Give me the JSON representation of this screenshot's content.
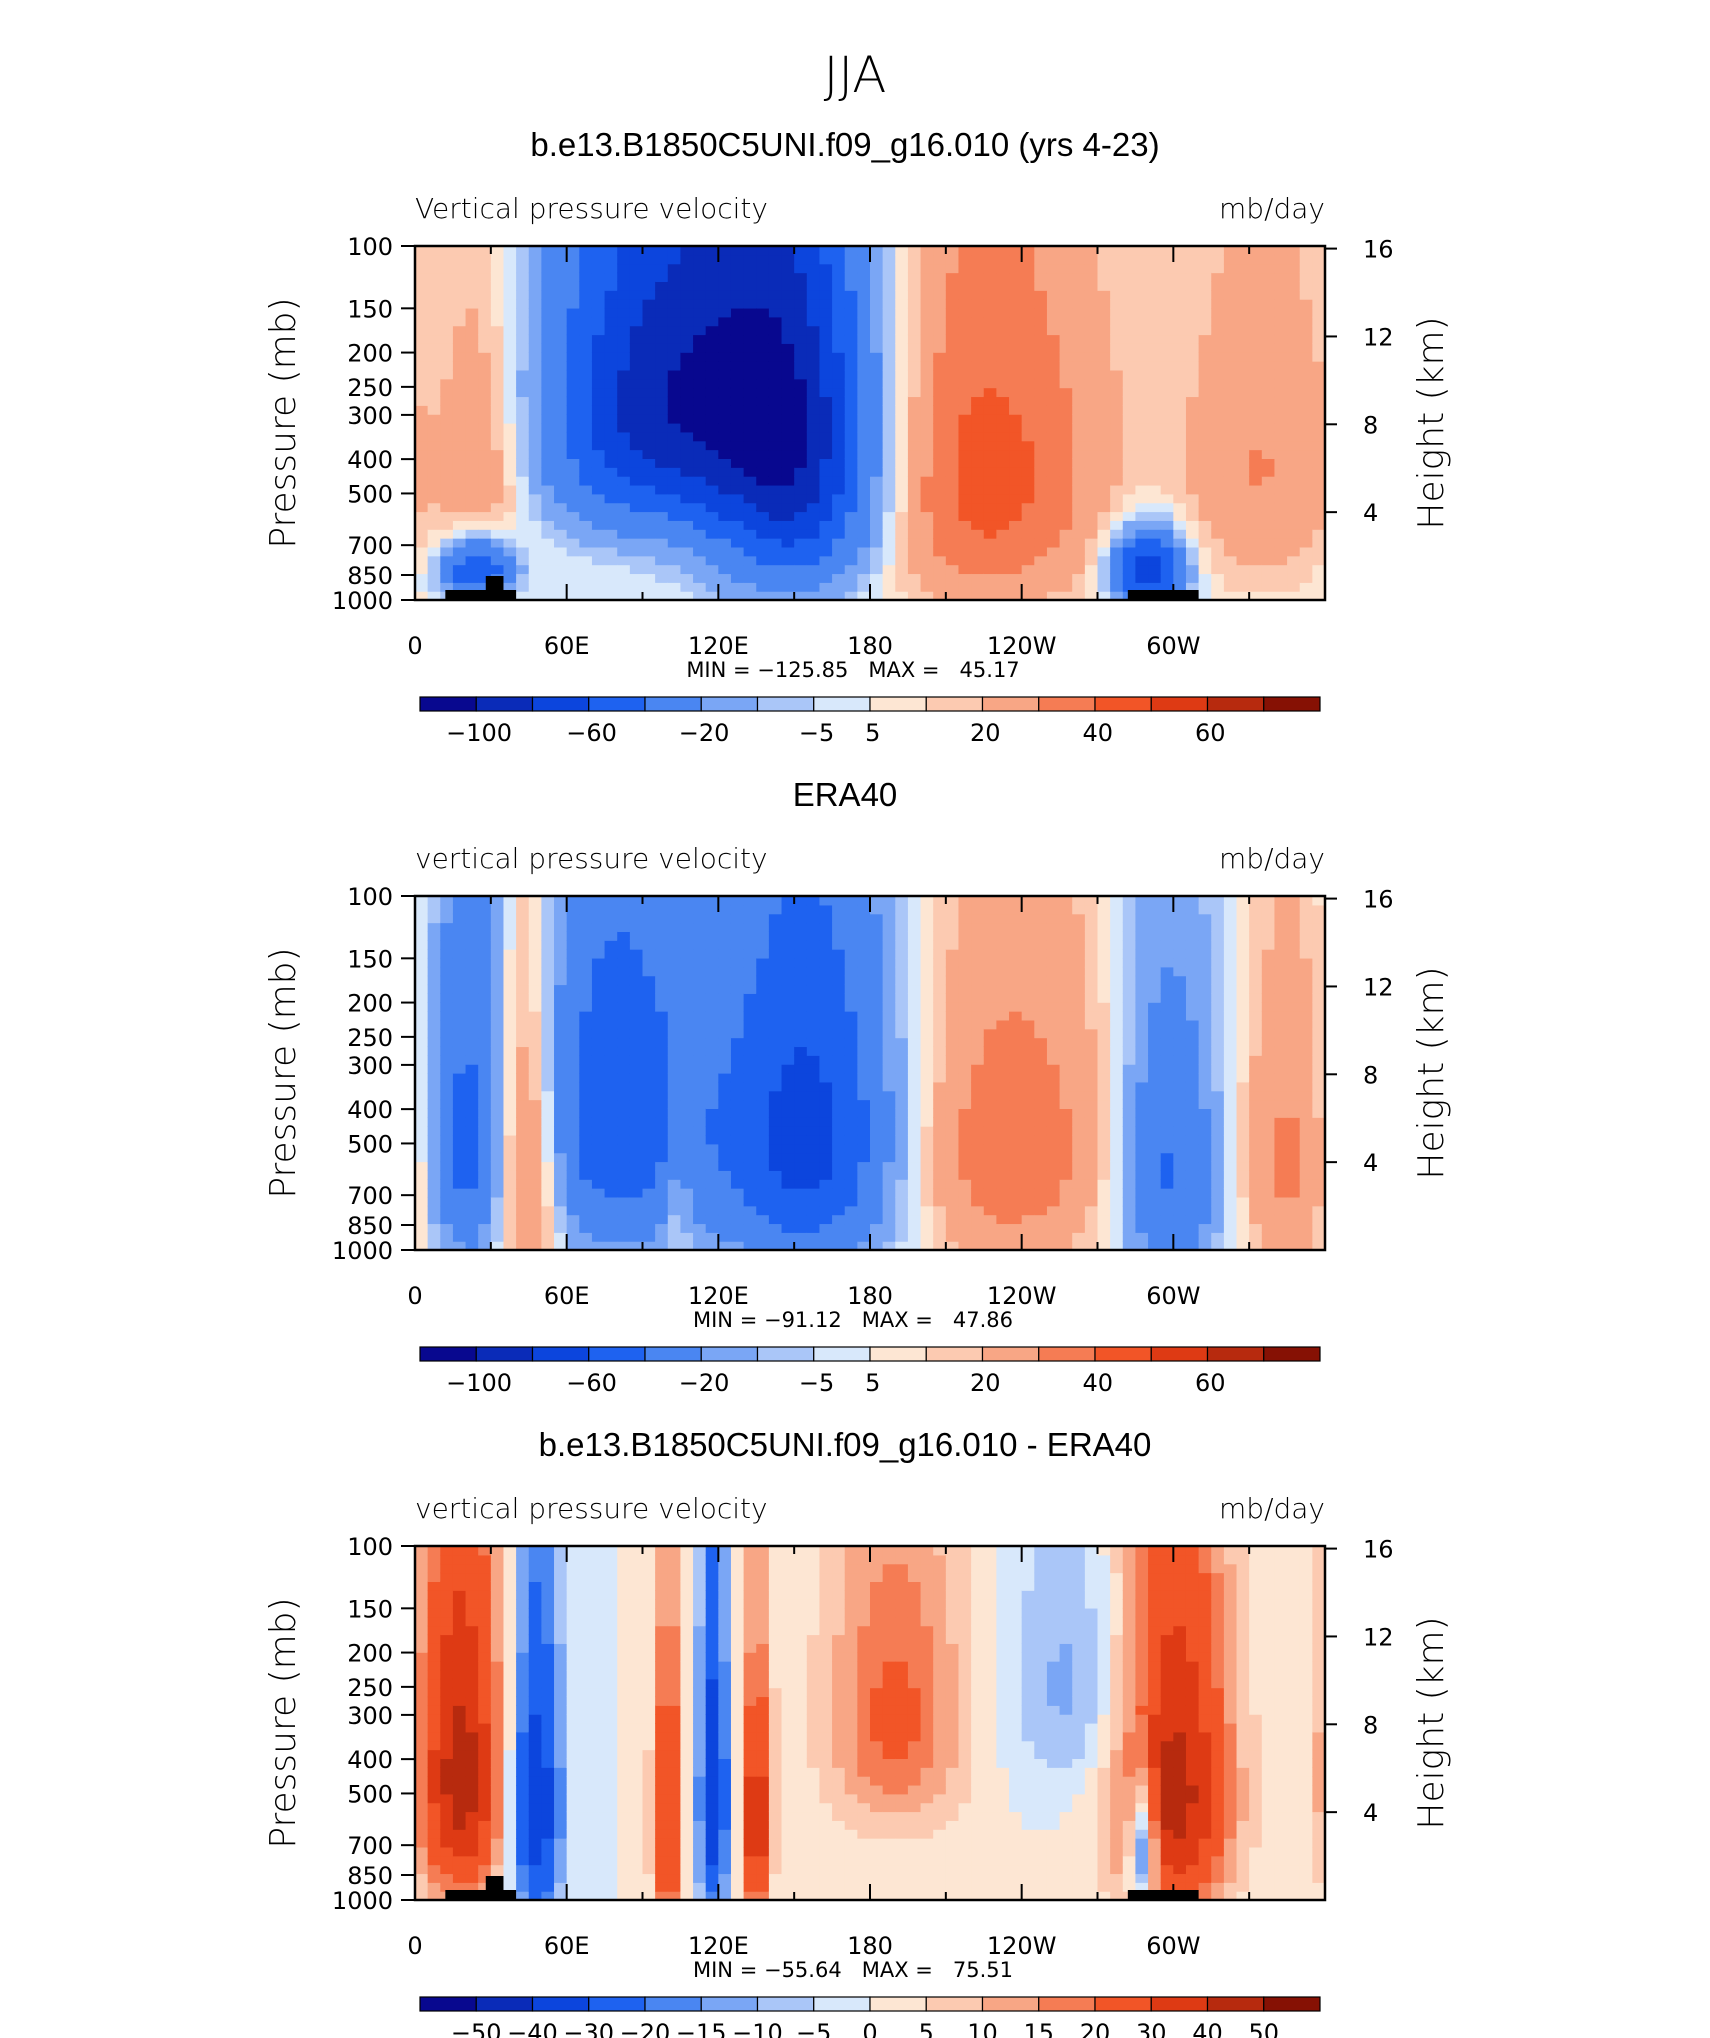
{
  "page": {
    "title": "JJA"
  },
  "colors": {
    "cbar_main": [
      "#08088f",
      "#0a2bb8",
      "#0c45dd",
      "#1e62f0",
      "#4a86f2",
      "#7aa6f5",
      "#aac6f8",
      "#d8e8fb",
      "#fde6d3",
      "#fccab1",
      "#f8a685",
      "#f57c54",
      "#f25527",
      "#de3a14",
      "#b72a0e",
      "#861104"
    ],
    "cbar_diff": [
      "#08088f",
      "#0a2bb8",
      "#0c45dd",
      "#1e62f0",
      "#4a86f2",
      "#7aa6f5",
      "#aac6f8",
      "#d8e8fb",
      "#fde6d3",
      "#fccab1",
      "#f8a685",
      "#f57c54",
      "#f25527",
      "#de3a14",
      "#b72a0e",
      "#861104"
    ]
  },
  "chart_data": [
    {
      "type": "heatmap",
      "title": "b.e13.B1850C5UNI.f09_g16.010 (yrs 4-23)",
      "left_label": "Vertical pressure velocity",
      "right_label": "mb/day",
      "ylabel": "Pressure (mb)",
      "ylabel2": "Height (km)",
      "y_ticks": [
        "100",
        "150",
        "200",
        "250",
        "300",
        "400",
        "500",
        "700",
        "850",
        "1000"
      ],
      "y_values": [
        100,
        150,
        200,
        250,
        300,
        400,
        500,
        700,
        850,
        1000
      ],
      "ylim": [
        1000,
        100
      ],
      "y2_ticks": [
        "16",
        "12",
        "8",
        "4"
      ],
      "y2_values": [
        16,
        12,
        8,
        4
      ],
      "x_ticks": [
        "0",
        "60E",
        "120E",
        "180",
        "120W",
        "60W"
      ],
      "x_values": [
        0,
        60,
        120,
        180,
        240,
        300
      ],
      "xlim": [
        0,
        360
      ],
      "stats": "MIN = −125.85   MAX =   45.17",
      "colorbar_labels": [
        "−100",
        "−60",
        "−20",
        "−5",
        "5",
        "20",
        "40",
        "60"
      ],
      "colorbar_levels": [
        -120,
        -100,
        -80,
        -60,
        -40,
        -20,
        -10,
        -5,
        0,
        5,
        10,
        20,
        30,
        40,
        50,
        60,
        70
      ],
      "field_features": [
        {
          "lon": 90,
          "p": 290,
          "value": -70,
          "dlon": 28,
          "dp": 220
        },
        {
          "lon": 150,
          "p": 420,
          "value": -85,
          "dlon": 24,
          "dp": 320
        },
        {
          "lon": 225,
          "p": 450,
          "value": 35,
          "dlon": 35,
          "dp": 380
        },
        {
          "lon": 27,
          "p": 480,
          "value": 20,
          "dlon": 12,
          "dp": 350
        },
        {
          "lon": 25,
          "p": 820,
          "value": -70,
          "dlon": 10,
          "dp": 120
        },
        {
          "lon": 290,
          "p": 820,
          "value": -80,
          "dlon": 10,
          "dp": 140
        },
        {
          "lon": 335,
          "p": 420,
          "value": 20,
          "dlon": 22,
          "dp": 320
        },
        {
          "lon": 125,
          "p": 200,
          "value": -40,
          "dlon": 30,
          "dp": 200
        }
      ]
    },
    {
      "type": "heatmap",
      "title": "ERA40",
      "left_label": "vertical pressure velocity",
      "right_label": "mb/day",
      "ylabel": "Pressure (mb)",
      "ylabel2": "Height (km)",
      "y_ticks": [
        "100",
        "150",
        "200",
        "250",
        "300",
        "400",
        "500",
        "700",
        "850",
        "1000"
      ],
      "y_values": [
        100,
        150,
        200,
        250,
        300,
        400,
        500,
        700,
        850,
        1000
      ],
      "ylim": [
        1000,
        100
      ],
      "y2_ticks": [
        "16",
        "12",
        "8",
        "4"
      ],
      "y2_values": [
        16,
        12,
        8,
        4
      ],
      "x_ticks": [
        "0",
        "60E",
        "120E",
        "180",
        "120W",
        "60W"
      ],
      "x_values": [
        0,
        60,
        120,
        180,
        240,
        300
      ],
      "xlim": [
        0,
        360
      ],
      "stats": "MIN = −91.12   MAX =   47.86",
      "colorbar_labels": [
        "−100",
        "−60",
        "−20",
        "−5",
        "5",
        "20",
        "40",
        "60"
      ],
      "colorbar_levels": [
        -120,
        -100,
        -80,
        -60,
        -40,
        -20,
        -10,
        -5,
        0,
        5,
        10,
        20,
        30,
        40,
        50,
        60,
        70
      ],
      "field_features": [
        {
          "lon": 20,
          "p": 500,
          "value": -45,
          "dlon": 10,
          "dp": 380
        },
        {
          "lon": 45,
          "p": 550,
          "value": 40,
          "dlon": 9,
          "dp": 380
        },
        {
          "lon": 80,
          "p": 420,
          "value": -55,
          "dlon": 25,
          "dp": 360
        },
        {
          "lon": 155,
          "p": 480,
          "value": -70,
          "dlon": 25,
          "dp": 380
        },
        {
          "lon": 235,
          "p": 520,
          "value": 28,
          "dlon": 32,
          "dp": 380
        },
        {
          "lon": 298,
          "p": 600,
          "value": -45,
          "dlon": 14,
          "dp": 380
        },
        {
          "lon": 345,
          "p": 560,
          "value": 22,
          "dlon": 14,
          "dp": 380
        },
        {
          "lon": 104,
          "p": 700,
          "value": 20,
          "dlon": 4,
          "dp": 200
        }
      ]
    },
    {
      "type": "heatmap",
      "title": "b.e13.B1850C5UNI.f09_g16.010 - ERA40",
      "left_label": "vertical pressure velocity",
      "right_label": "mb/day",
      "ylabel": "Pressure (mb)",
      "ylabel2": "Height (km)",
      "y_ticks": [
        "100",
        "150",
        "200",
        "250",
        "300",
        "400",
        "500",
        "700",
        "850",
        "1000"
      ],
      "y_values": [
        100,
        150,
        200,
        250,
        300,
        400,
        500,
        700,
        850,
        1000
      ],
      "ylim": [
        1000,
        100
      ],
      "y2_ticks": [
        "16",
        "12",
        "8",
        "4"
      ],
      "y2_values": [
        16,
        12,
        8,
        4
      ],
      "x_ticks": [
        "0",
        "60E",
        "120E",
        "180",
        "120W",
        "60W"
      ],
      "x_values": [
        0,
        60,
        120,
        180,
        240,
        300
      ],
      "xlim": [
        0,
        360
      ],
      "stats": "MIN = −55.64   MAX =   75.51",
      "colorbar_labels": [
        "−50",
        "−40",
        "−30",
        "−20",
        "−15",
        "−10",
        "−5",
        "0",
        "5",
        "10",
        "15",
        "20",
        "30",
        "40",
        "50"
      ],
      "colorbar_levels": [
        -60,
        -50,
        -40,
        -30,
        -20,
        -15,
        -10,
        -5,
        0,
        5,
        10,
        15,
        20,
        30,
        40,
        50,
        60
      ],
      "field_features": [
        {
          "lon": 18,
          "p": 450,
          "value": 45,
          "dlon": 12,
          "dp": 350
        },
        {
          "lon": 48,
          "p": 550,
          "value": -40,
          "dlon": 7,
          "dp": 380
        },
        {
          "lon": 100,
          "p": 600,
          "value": 35,
          "dlon": 4,
          "dp": 380
        },
        {
          "lon": 118,
          "p": 520,
          "value": -40,
          "dlon": 4,
          "dp": 380
        },
        {
          "lon": 135,
          "p": 600,
          "value": 40,
          "dlon": 4,
          "dp": 320
        },
        {
          "lon": 190,
          "p": 300,
          "value": 22,
          "dlon": 20,
          "dp": 220
        },
        {
          "lon": 300,
          "p": 500,
          "value": 45,
          "dlon": 16,
          "dp": 380
        },
        {
          "lon": 288,
          "p": 700,
          "value": -40,
          "dlon": 4,
          "dp": 200
        },
        {
          "lon": 260,
          "p": 250,
          "value": -12,
          "dlon": 18,
          "dp": 150
        }
      ]
    }
  ]
}
